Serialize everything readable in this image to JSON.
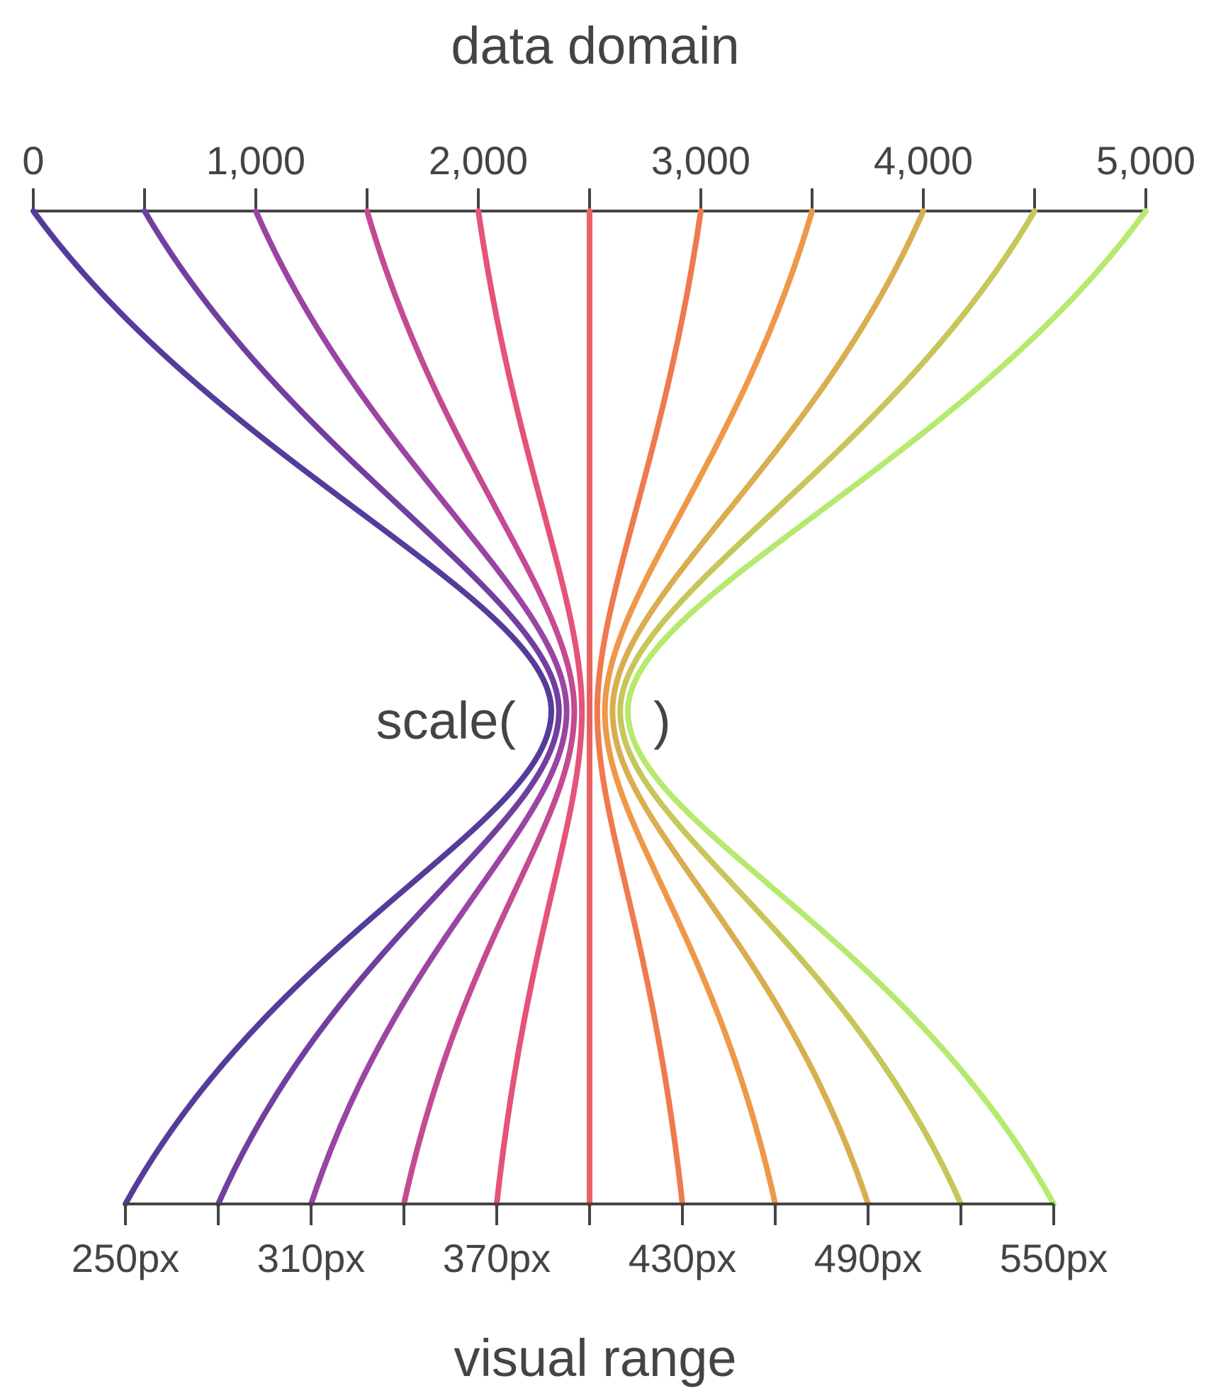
{
  "titles": {
    "top": "data domain",
    "bottom": "visual range",
    "func_open": "scale(",
    "func_close": ")"
  },
  "domain_axis": {
    "min": 0,
    "max": 5000,
    "major_ticks": [
      0,
      1000,
      2000,
      3000,
      4000,
      5000
    ],
    "major_labels": [
      "0",
      "1,000",
      "2,000",
      "3,000",
      "4,000",
      "5,000"
    ],
    "minor_ticks": [
      500,
      1500,
      2500,
      3500,
      4500
    ]
  },
  "range_axis": {
    "min": 250,
    "max": 550,
    "major_ticks": [
      250,
      310,
      370,
      430,
      490,
      550
    ],
    "major_labels": [
      "250px",
      "310px",
      "370px",
      "430px",
      "490px",
      "550px"
    ],
    "minor_ticks": [
      280,
      340,
      400,
      460,
      520
    ]
  },
  "mappings": [
    {
      "domain": 0,
      "range": 250,
      "color": "#553c9a"
    },
    {
      "domain": 500,
      "range": 280,
      "color": "#713f9f"
    },
    {
      "domain": 1000,
      "range": 310,
      "color": "#9a44a3"
    },
    {
      "domain": 1500,
      "range": 340,
      "color": "#c44a93"
    },
    {
      "domain": 2000,
      "range": 370,
      "color": "#e5527a"
    },
    {
      "domain": 2500,
      "range": 400,
      "color": "#e86262"
    },
    {
      "domain": 3000,
      "range": 430,
      "color": "#ee7a4e"
    },
    {
      "domain": 3500,
      "range": 460,
      "color": "#ee9848"
    },
    {
      "domain": 4000,
      "range": 490,
      "color": "#d9ae50"
    },
    {
      "domain": 4500,
      "range": 520,
      "color": "#c6c65a"
    },
    {
      "domain": 5000,
      "range": 550,
      "color": "#b5ea6e"
    }
  ]
}
